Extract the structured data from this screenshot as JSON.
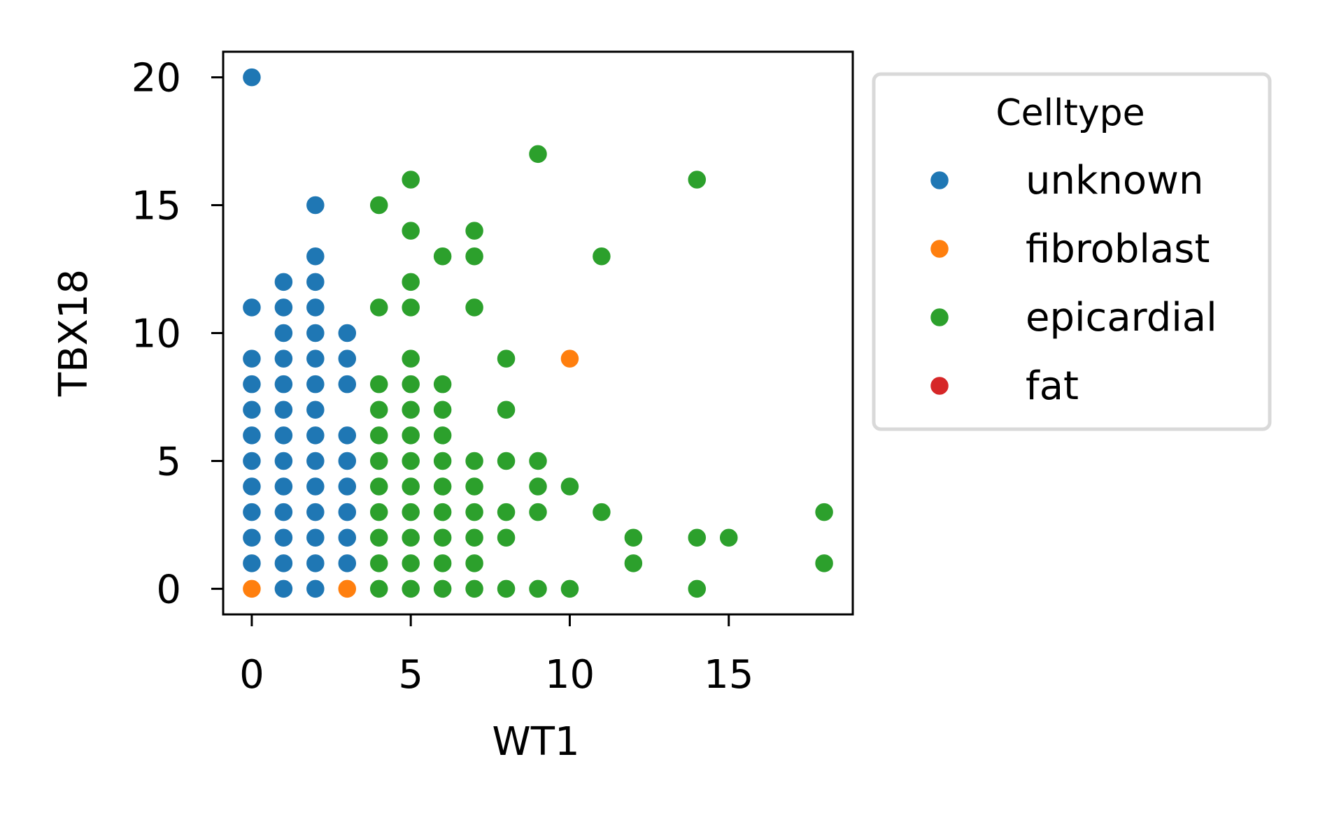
{
  "chart_data": {
    "type": "scatter",
    "xlabel": "WT1",
    "ylabel": "TBX18",
    "xlim": [
      -0.9,
      18.9
    ],
    "ylim": [
      -1.0,
      21.0
    ],
    "xticks": [
      0,
      5,
      10,
      15
    ],
    "yticks": [
      0,
      5,
      10,
      15,
      20
    ],
    "grid": false,
    "legend": {
      "title": "Celltype",
      "placement": "outside-right-top",
      "entries": [
        "unknown",
        "fibroblast",
        "epicardial",
        "fat"
      ]
    },
    "series": [
      {
        "name": "unknown",
        "color": "#1f77b4",
        "points": [
          [
            0,
            20
          ],
          [
            0,
            11
          ],
          [
            0,
            9
          ],
          [
            0,
            8
          ],
          [
            0,
            7
          ],
          [
            0,
            6
          ],
          [
            0,
            5
          ],
          [
            0,
            4
          ],
          [
            0,
            3
          ],
          [
            0,
            2
          ],
          [
            0,
            1
          ],
          [
            1,
            12
          ],
          [
            1,
            11
          ],
          [
            1,
            10
          ],
          [
            1,
            9
          ],
          [
            1,
            8
          ],
          [
            1,
            7
          ],
          [
            1,
            6
          ],
          [
            1,
            5
          ],
          [
            1,
            4
          ],
          [
            1,
            3
          ],
          [
            1,
            2
          ],
          [
            1,
            1
          ],
          [
            1,
            0
          ],
          [
            2,
            15
          ],
          [
            2,
            13
          ],
          [
            2,
            12
          ],
          [
            2,
            11
          ],
          [
            2,
            10
          ],
          [
            2,
            9
          ],
          [
            2,
            8
          ],
          [
            2,
            7
          ],
          [
            2,
            6
          ],
          [
            2,
            5
          ],
          [
            2,
            4
          ],
          [
            2,
            3
          ],
          [
            2,
            2
          ],
          [
            2,
            1
          ],
          [
            2,
            0
          ],
          [
            3,
            10
          ],
          [
            3,
            9
          ],
          [
            3,
            8
          ],
          [
            3,
            6
          ],
          [
            3,
            5
          ],
          [
            3,
            4
          ],
          [
            3,
            3
          ],
          [
            3,
            2
          ],
          [
            3,
            1
          ]
        ]
      },
      {
        "name": "fibroblast",
        "color": "#ff7f0e",
        "points": [
          [
            0,
            0
          ],
          [
            3,
            0
          ],
          [
            10,
            9
          ]
        ]
      },
      {
        "name": "epicardial",
        "color": "#2ca02c",
        "points": [
          [
            4,
            15
          ],
          [
            4,
            11
          ],
          [
            4,
            8
          ],
          [
            4,
            7
          ],
          [
            4,
            6
          ],
          [
            4,
            5
          ],
          [
            4,
            4
          ],
          [
            4,
            3
          ],
          [
            4,
            2
          ],
          [
            4,
            1
          ],
          [
            4,
            0
          ],
          [
            5,
            16
          ],
          [
            5,
            14
          ],
          [
            5,
            12
          ],
          [
            5,
            11
          ],
          [
            5,
            9
          ],
          [
            5,
            8
          ],
          [
            5,
            7
          ],
          [
            5,
            6
          ],
          [
            5,
            5
          ],
          [
            5,
            4
          ],
          [
            5,
            3
          ],
          [
            5,
            2
          ],
          [
            5,
            1
          ],
          [
            5,
            0
          ],
          [
            6,
            13
          ],
          [
            6,
            8
          ],
          [
            6,
            7
          ],
          [
            6,
            6
          ],
          [
            6,
            5
          ],
          [
            6,
            4
          ],
          [
            6,
            3
          ],
          [
            6,
            2
          ],
          [
            6,
            1
          ],
          [
            6,
            0
          ],
          [
            7,
            14
          ],
          [
            7,
            13
          ],
          [
            7,
            11
          ],
          [
            7,
            5
          ],
          [
            7,
            4
          ],
          [
            7,
            3
          ],
          [
            7,
            2
          ],
          [
            7,
            1
          ],
          [
            7,
            0
          ],
          [
            8,
            9
          ],
          [
            8,
            7
          ],
          [
            8,
            5
          ],
          [
            8,
            3
          ],
          [
            8,
            2
          ],
          [
            8,
            0
          ],
          [
            9,
            17
          ],
          [
            9,
            5
          ],
          [
            9,
            4
          ],
          [
            9,
            3
          ],
          [
            9,
            0
          ],
          [
            10,
            4
          ],
          [
            10,
            0
          ],
          [
            11,
            13
          ],
          [
            11,
            3
          ],
          [
            12,
            2
          ],
          [
            12,
            1
          ],
          [
            14,
            16
          ],
          [
            14,
            2
          ],
          [
            14,
            0
          ],
          [
            15,
            2
          ],
          [
            18,
            3
          ],
          [
            18,
            1
          ]
        ]
      },
      {
        "name": "fat",
        "color": "#d62728",
        "points": []
      }
    ]
  }
}
